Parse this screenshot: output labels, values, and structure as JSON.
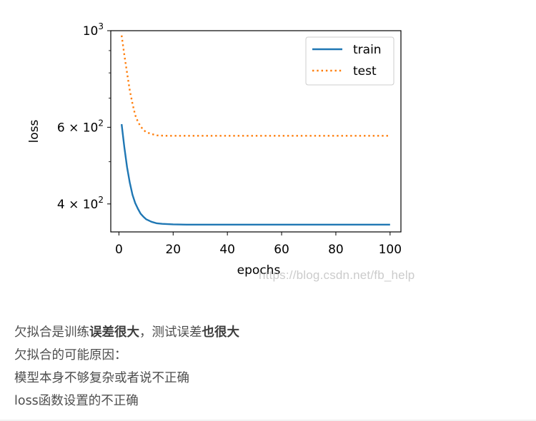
{
  "chart_data": {
    "type": "line",
    "xlabel": "epochs",
    "ylabel": "loss",
    "yscale": "log",
    "xlim": [
      -3,
      104
    ],
    "ylim": [
      345,
      1000
    ],
    "x_ticks": [
      0,
      20,
      40,
      60,
      80,
      100
    ],
    "x_tick_labels": [
      "0",
      "20",
      "40",
      "60",
      "80",
      "100"
    ],
    "y_major_ticks": [
      {
        "value": 400,
        "mantissa": "4 × ",
        "base": "10",
        "exp": "2"
      },
      {
        "value": 600,
        "mantissa": "6 × ",
        "base": "10",
        "exp": "2"
      },
      {
        "value": 1000,
        "mantissa": "",
        "base": "10",
        "exp": "3"
      }
    ],
    "y_minor_ticks": [
      500,
      700,
      800,
      900
    ],
    "legend_position": "top-right",
    "grid": false,
    "series": [
      {
        "name": "train",
        "style": "solid",
        "color": "#1f77b4",
        "x": [
          1,
          2,
          3,
          4,
          5,
          6,
          7,
          8,
          9,
          10,
          12,
          14,
          16,
          18,
          20,
          25,
          30,
          40,
          50,
          60,
          70,
          80,
          90,
          100
        ],
        "y": [
          610,
          540,
          486,
          448,
          420,
          402,
          390,
          380,
          374,
          369,
          364,
          361,
          360,
          359.5,
          359,
          358.5,
          358.5,
          358.5,
          358.5,
          358.5,
          358.5,
          358.5,
          358.5,
          358.5
        ]
      },
      {
        "name": "test",
        "style": "dotted",
        "color": "#ff7f0e",
        "x": [
          1,
          2,
          3,
          4,
          5,
          6,
          7,
          8,
          9,
          10,
          12,
          14,
          16,
          18,
          20,
          25,
          30,
          40,
          50,
          60,
          70,
          80,
          90,
          100
        ],
        "y": [
          975,
          880,
          800,
          730,
          680,
          640,
          618,
          603,
          592,
          585,
          579,
          575,
          574,
          573.5,
          573.5,
          573.5,
          573.5,
          573.5,
          573.5,
          573.5,
          573.5,
          573.5,
          573.5,
          573.5
        ]
      }
    ]
  },
  "watermark": "https://blog.csdn.net/fb_help",
  "article": {
    "line1": {
      "part1": "欠拟合是训练",
      "bold1": "误差很大",
      "part2": "，测试误差",
      "bold2": "也很大"
    },
    "line2": "欠拟合的可能原因：",
    "line3": "模型本身不够复杂或者说不正确",
    "line4": "loss函数设置的不正确"
  }
}
